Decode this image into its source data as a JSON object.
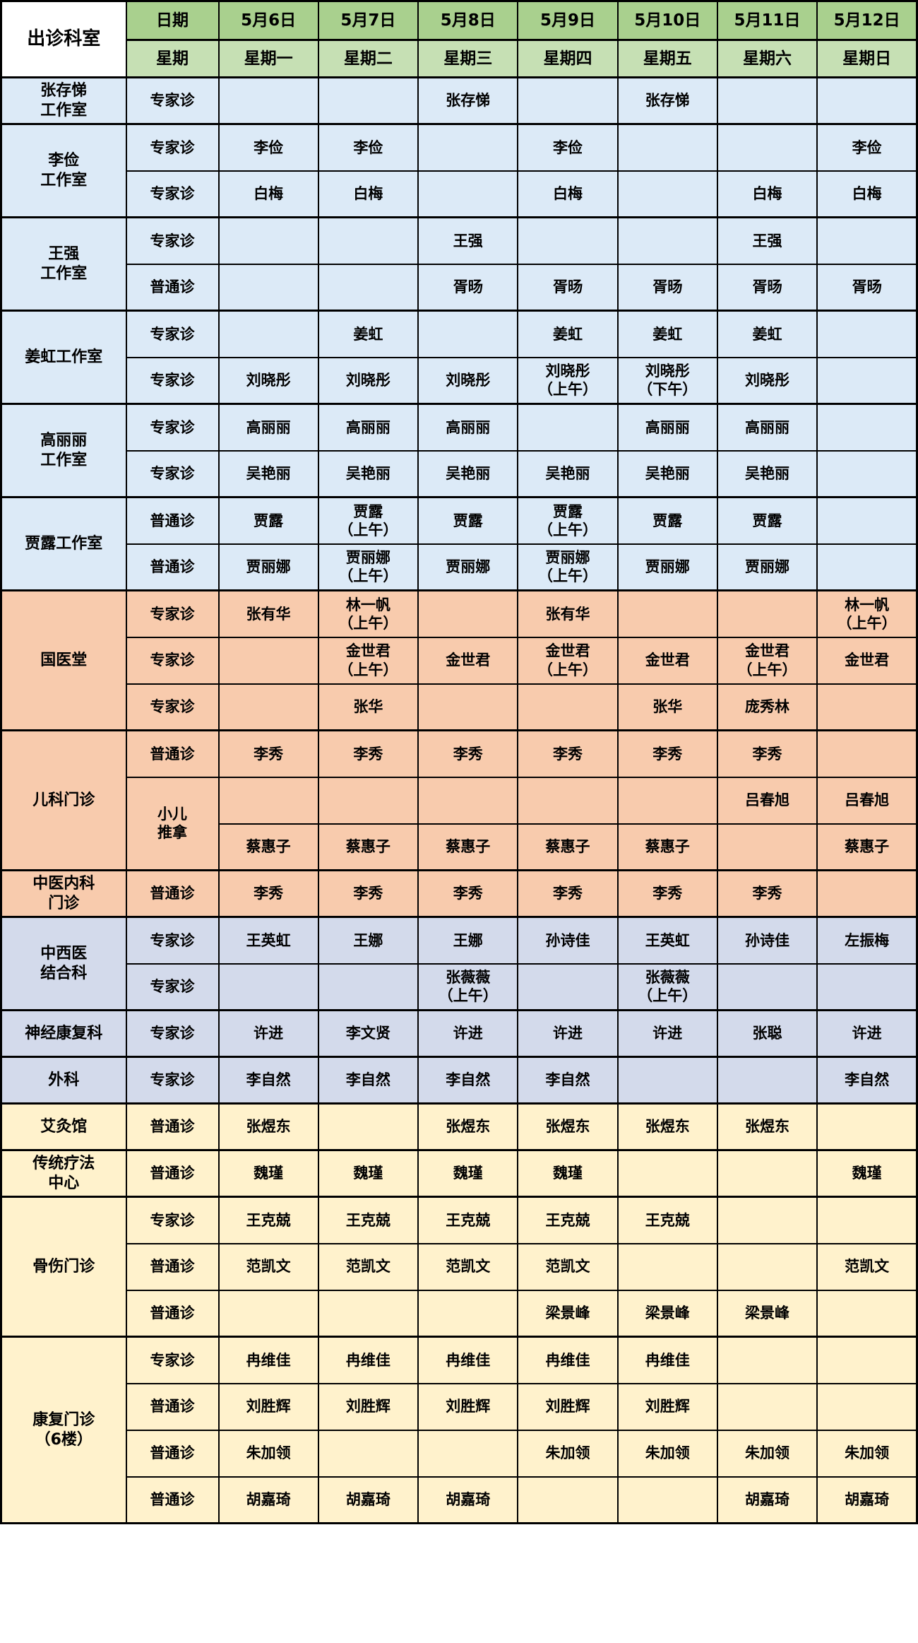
{
  "header": {
    "corner_label": "出诊科室",
    "date_row_label": "日期",
    "week_row_label": "星期",
    "dates": [
      "5月6日",
      "5月7日",
      "5月8日",
      "5月9日",
      "5月10日",
      "5月11日",
      "5月12日"
    ],
    "weekdays": [
      "星期一",
      "星期二",
      "星期三",
      "星期四",
      "星期五",
      "星期六",
      "星期日"
    ]
  },
  "colors": {
    "corner_bg": "#FFFFFF",
    "header_date_bg": "#A9D08E",
    "header_week_bg": "#C6E0B4",
    "section_blue": "#DCEAF7",
    "section_peach": "#F8CBAD",
    "section_lavender": "#D3DAEB",
    "section_yellow": "#FFF2CC",
    "border": "#000000",
    "text": "#000000"
  },
  "visit_types": {
    "expert": "专家诊",
    "general": "普通诊",
    "pediatric_massage": "小儿\n推拿"
  },
  "sections": [
    {
      "name": "张存悌\n工作室",
      "theme": "blue",
      "rows": [
        {
          "type": "专家诊",
          "cells": [
            "",
            "",
            "张存悌",
            "",
            "张存悌",
            "",
            ""
          ]
        }
      ]
    },
    {
      "name": "李俭\n工作室",
      "theme": "blue",
      "rows": [
        {
          "type": "专家诊",
          "cells": [
            "李俭",
            "李俭",
            "",
            "李俭",
            "",
            "",
            "李俭"
          ]
        },
        {
          "type": "专家诊",
          "cells": [
            "白梅",
            "白梅",
            "",
            "白梅",
            "",
            "白梅",
            "白梅"
          ]
        }
      ]
    },
    {
      "name": "王强\n工作室",
      "theme": "blue",
      "rows": [
        {
          "type": "专家诊",
          "cells": [
            "",
            "",
            "王强",
            "",
            "",
            "王强",
            ""
          ]
        },
        {
          "type": "普通诊",
          "cells": [
            "",
            "",
            "胥旸",
            "胥旸",
            "胥旸",
            "胥旸",
            "胥旸"
          ]
        }
      ]
    },
    {
      "name": "姜虹工作室",
      "theme": "blue",
      "rows": [
        {
          "type": "专家诊",
          "cells": [
            "",
            "姜虹",
            "",
            "姜虹",
            "姜虹",
            "姜虹",
            ""
          ]
        },
        {
          "type": "专家诊",
          "cells": [
            "刘晓彤",
            "刘晓彤",
            "刘晓彤",
            "刘晓彤\n（上午）",
            "刘晓彤\n（下午）",
            "刘晓彤",
            ""
          ]
        }
      ]
    },
    {
      "name": "高丽丽\n工作室",
      "theme": "blue",
      "rows": [
        {
          "type": "专家诊",
          "cells": [
            "高丽丽",
            "高丽丽",
            "高丽丽",
            "",
            "高丽丽",
            "高丽丽",
            ""
          ]
        },
        {
          "type": "专家诊",
          "cells": [
            "吴艳丽",
            "吴艳丽",
            "吴艳丽",
            "吴艳丽",
            "吴艳丽",
            "吴艳丽",
            ""
          ]
        }
      ]
    },
    {
      "name": "贾露工作室",
      "theme": "blue",
      "rows": [
        {
          "type": "普通诊",
          "cells": [
            "贾露",
            "贾露\n（上午）",
            "贾露",
            "贾露\n（上午）",
            "贾露",
            "贾露",
            ""
          ]
        },
        {
          "type": "普通诊",
          "cells": [
            "贾丽娜",
            "贾丽娜\n（上午）",
            "贾丽娜",
            "贾丽娜\n（上午）",
            "贾丽娜",
            "贾丽娜",
            ""
          ]
        }
      ]
    },
    {
      "name": "国医堂",
      "theme": "peach",
      "rows": [
        {
          "type": "专家诊",
          "cells": [
            "张有华",
            "林一帆\n（上午）",
            "",
            "张有华",
            "",
            "",
            "林一帆\n（上午）"
          ]
        },
        {
          "type": "专家诊",
          "cells": [
            "",
            "金世君\n（上午）",
            "金世君",
            "金世君\n（上午）",
            "金世君",
            "金世君\n（上午）",
            "金世君"
          ]
        },
        {
          "type": "专家诊",
          "cells": [
            "",
            "张华",
            "",
            "",
            "张华",
            "庞秀林",
            ""
          ]
        }
      ]
    },
    {
      "name": "儿科门诊",
      "theme": "peach",
      "rows": [
        {
          "type": "普通诊",
          "cells": [
            "李秀",
            "李秀",
            "李秀",
            "李秀",
            "李秀",
            "李秀",
            ""
          ]
        },
        {
          "type": "小儿\n推拿",
          "type_rowspan": 2,
          "cells": [
            "",
            "",
            "",
            "",
            "",
            "吕春旭",
            "吕春旭"
          ]
        },
        {
          "type": null,
          "cells": [
            "蔡惠子",
            "蔡惠子",
            "蔡惠子",
            "蔡惠子",
            "蔡惠子",
            "",
            "蔡惠子"
          ]
        }
      ]
    },
    {
      "name": "中医内科\n门诊",
      "theme": "peach",
      "rows": [
        {
          "type": "普通诊",
          "cells": [
            "李秀",
            "李秀",
            "李秀",
            "李秀",
            "李秀",
            "李秀",
            ""
          ]
        }
      ]
    },
    {
      "name": "中西医\n结合科",
      "theme": "lavender",
      "rows": [
        {
          "type": "专家诊",
          "cells": [
            "王英虹",
            "王娜",
            "王娜",
            "孙诗佳",
            "王英虹",
            "孙诗佳",
            "左振梅"
          ]
        },
        {
          "type": "专家诊",
          "cells": [
            "",
            "",
            "张薇薇\n（上午）",
            "",
            "张薇薇\n（上午）",
            "",
            ""
          ]
        }
      ]
    },
    {
      "name": "神经康复科",
      "theme": "lavender",
      "rows": [
        {
          "type": "专家诊",
          "cells": [
            "许进",
            "李文贤",
            "许进",
            "许进",
            "许进",
            "张聪",
            "许进"
          ]
        }
      ]
    },
    {
      "name": "外科",
      "theme": "lavender",
      "rows": [
        {
          "type": "专家诊",
          "cells": [
            "李自然",
            "李自然",
            "李自然",
            "李自然",
            "",
            "",
            "李自然"
          ]
        }
      ]
    },
    {
      "name": "艾灸馆",
      "theme": "yellow",
      "rows": [
        {
          "type": "普通诊",
          "cells": [
            "张煜东",
            "",
            "张煜东",
            "张煜东",
            "张煜东",
            "张煜东",
            ""
          ]
        }
      ]
    },
    {
      "name": "传统疗法\n中心",
      "theme": "yellow",
      "rows": [
        {
          "type": "普通诊",
          "cells": [
            "魏瑾",
            "魏瑾",
            "魏瑾",
            "魏瑾",
            "",
            "",
            "魏瑾"
          ]
        }
      ]
    },
    {
      "name": "骨伤门诊",
      "theme": "yellow",
      "rows": [
        {
          "type": "专家诊",
          "cells": [
            "王克兢",
            "王克兢",
            "王克兢",
            "王克兢",
            "王克兢",
            "",
            ""
          ]
        },
        {
          "type": "普通诊",
          "cells": [
            "范凯文",
            "范凯文",
            "范凯文",
            "范凯文",
            "",
            "",
            "范凯文"
          ]
        },
        {
          "type": "普通诊",
          "cells": [
            "",
            "",
            "",
            "梁景峰",
            "梁景峰",
            "梁景峰",
            ""
          ]
        }
      ]
    },
    {
      "name": "康复门诊\n（6楼）",
      "theme": "yellow",
      "rows": [
        {
          "type": "专家诊",
          "cells": [
            "冉维佳",
            "冉维佳",
            "冉维佳",
            "冉维佳",
            "冉维佳",
            "",
            ""
          ]
        },
        {
          "type": "普通诊",
          "cells": [
            "刘胜辉",
            "刘胜辉",
            "刘胜辉",
            "刘胜辉",
            "刘胜辉",
            "",
            ""
          ]
        },
        {
          "type": "普通诊",
          "cells": [
            "朱加领",
            "",
            "",
            "朱加领",
            "朱加领",
            "朱加领",
            "朱加领"
          ]
        },
        {
          "type": "普通诊",
          "cells": [
            "胡嘉琦",
            "胡嘉琦",
            "胡嘉琦",
            "",
            "",
            "胡嘉琦",
            "胡嘉琦"
          ]
        }
      ]
    }
  ]
}
